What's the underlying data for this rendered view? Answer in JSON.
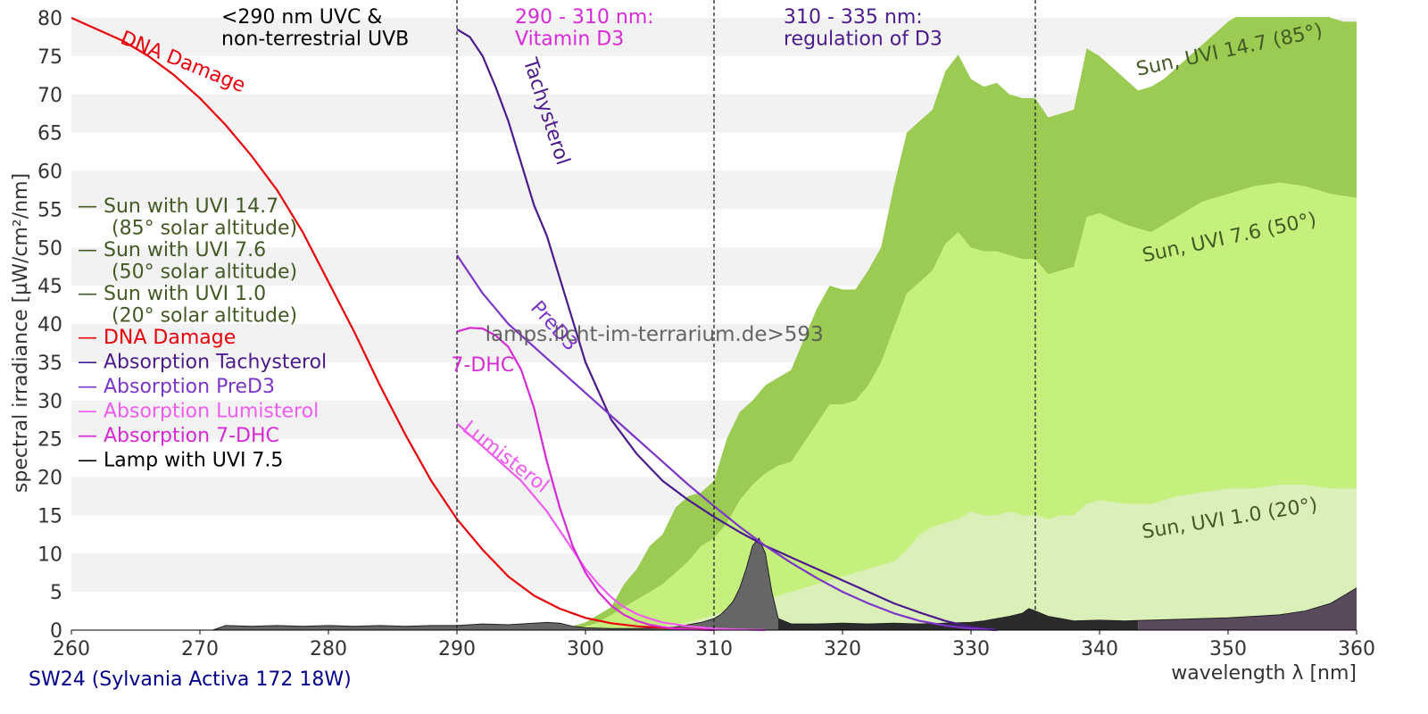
{
  "chart_data": {
    "type": "area",
    "xlabel": "wavelength λ [nm]",
    "ylabel": "spectral irradiance [µW/cm²/nm]",
    "xlim": [
      260,
      360
    ],
    "ylim": [
      0,
      80
    ],
    "x_ticks": [
      260,
      270,
      280,
      290,
      300,
      310,
      320,
      330,
      340,
      350,
      360
    ],
    "y_ticks": [
      0,
      5,
      10,
      15,
      20,
      25,
      30,
      35,
      40,
      45,
      50,
      55,
      60,
      65,
      70,
      75,
      80
    ],
    "grid": "horizontal bands",
    "legend_position": "left",
    "caption": "SW24 (Sylvania Activa 172 18W)",
    "watermark": "lamps.licht-im-terrarium.de>593",
    "colors": {
      "sun_uvi_14_7": "#9bcb52",
      "sun_uvi_7_6": "#c6f07e",
      "sun_uvi_1_0": "#daf0b8",
      "dna": "#e8000b",
      "tachysterol": "#4b1a8c",
      "pred3": "#7b35c8",
      "lumisterol": "#f05cf0",
      "dhc": "#d62ad6",
      "lamp": "#000000",
      "lamp_fill_uvb": "#666666",
      "lamp_fill_uva2": "#2b2b2b",
      "lamp_fill_uva1": "#5a4a5e",
      "sun_label": "#435a25",
      "caption": "#00008b"
    },
    "regions": [
      {
        "x": 290,
        "label_lines": [
          "<290 nm UVC &",
          "non-terrestrial UVB"
        ],
        "color": "#000000"
      },
      {
        "x": 310,
        "label_lines": [
          "290 - 310 nm:",
          "Vitamin D3"
        ],
        "color": "#d62ad6"
      },
      {
        "x": 335,
        "label_lines": [
          "310 - 335 nm:",
          "regulation of D3"
        ],
        "color": "#4b1a8c"
      }
    ],
    "legend": [
      {
        "lines": [
          "— Sun with UVI 14.7",
          "(85° solar altitude)"
        ],
        "color": "#435a25"
      },
      {
        "lines": [
          "— Sun with UVI 7.6",
          "(50° solar altitude)"
        ],
        "color": "#435a25"
      },
      {
        "lines": [
          "— Sun with UVI 1.0",
          "(20° solar altitude)"
        ],
        "color": "#435a25"
      },
      {
        "lines": [
          "— DNA Damage"
        ],
        "color": "#e8000b"
      },
      {
        "lines": [
          "— Absorption Tachysterol"
        ],
        "color": "#4b1a8c"
      },
      {
        "lines": [
          "— Absorption PreD3"
        ],
        "color": "#7b35c8"
      },
      {
        "lines": [
          "— Absorption Lumisterol"
        ],
        "color": "#f05cf0"
      },
      {
        "lines": [
          "— Absorption 7-DHC"
        ],
        "color": "#d62ad6"
      },
      {
        "lines": [
          "— Lamp with UVI 7.5"
        ],
        "color": "#000000"
      }
    ],
    "curve_labels": [
      {
        "text": "DNA Damage",
        "x": 268.5,
        "y": 73.5,
        "angle": 22,
        "color": "#e8000b"
      },
      {
        "text": "Tachysterol",
        "x": 296.5,
        "y": 67.5,
        "angle": 72,
        "color": "#4b1a8c"
      },
      {
        "text": "PreD3",
        "x": 297.2,
        "y": 39.2,
        "angle": 48,
        "color": "#7b35c8"
      },
      {
        "text": "7-DHC",
        "x": 292.0,
        "y": 33.8,
        "angle": 0,
        "color": "#d62ad6"
      },
      {
        "text": "Lumisterol",
        "x": 293.5,
        "y": 22.0,
        "angle": 38,
        "color": "#f05cf0"
      },
      {
        "text": "Sun, UVI 14.7 (85°)",
        "x": 350.2,
        "y": 75.0,
        "angle": -12,
        "color": "#435a25"
      },
      {
        "text": "Sun, UVI 7.6 (50°)",
        "x": 350.2,
        "y": 50.5,
        "angle": -12,
        "color": "#435a25"
      },
      {
        "text": "Sun, UVI 1.0 (20°)",
        "x": 350.2,
        "y": 13.8,
        "angle": -9,
        "color": "#435a25"
      }
    ],
    "series": [
      {
        "name": "Sun with UVI 14.7",
        "kind": "area",
        "x": [
          298,
          300,
          302,
          303,
          304,
          305,
          306,
          307,
          308,
          309,
          310,
          311,
          312,
          313,
          314,
          315,
          316,
          317,
          318,
          319,
          320,
          321,
          322,
          323,
          324,
          325,
          326,
          327,
          328,
          329,
          330,
          331,
          332,
          333,
          334,
          335,
          336,
          337,
          338,
          339,
          340,
          341,
          342,
          343,
          344,
          345,
          346,
          347,
          348,
          349,
          350,
          351,
          352,
          353,
          354,
          355,
          356,
          357,
          358,
          359,
          360
        ],
        "y": [
          0,
          1.0,
          3.0,
          6.0,
          8.0,
          11.0,
          12.5,
          16.0,
          17.5,
          18.0,
          19.5,
          25.0,
          28.5,
          30.0,
          32.0,
          33.0,
          34.0,
          38.0,
          42.0,
          45.0,
          44.5,
          44.5,
          47.0,
          50.0,
          58.0,
          65.0,
          66.5,
          68.0,
          73.0,
          75.2,
          72.0,
          71.0,
          71.5,
          70.0,
          69.5,
          69.5,
          67.0,
          67.5,
          68.0,
          76.0,
          75.0,
          73.5,
          72.0,
          70.5,
          71.0,
          72.0,
          73.5,
          75.0,
          76.5,
          78.0,
          79.5,
          80.5,
          81.5,
          82.5,
          83.0,
          83.5,
          82.0,
          81.0,
          80.0,
          79.5,
          79.5
        ]
      },
      {
        "name": "Sun with UVI 7.6",
        "kind": "area",
        "x": [
          299,
          301,
          302,
          303,
          304,
          305,
          306,
          307,
          308,
          309,
          310,
          311,
          312,
          313,
          314,
          315,
          316,
          317,
          318,
          319,
          320,
          321,
          322,
          323,
          324,
          325,
          326,
          327,
          328,
          329,
          330,
          331,
          332,
          333,
          334,
          335,
          336,
          337,
          338,
          339,
          340,
          342,
          344,
          346,
          348,
          350,
          352,
          354,
          356,
          358,
          360
        ],
        "y": [
          0,
          1.0,
          2.0,
          3.0,
          4.0,
          5.0,
          6.0,
          7.5,
          9.0,
          11.0,
          12.0,
          14.0,
          17.0,
          19.0,
          20.5,
          21.5,
          22.0,
          24.5,
          27.0,
          29.5,
          29.5,
          30.0,
          32.0,
          35.0,
          39.5,
          44.0,
          45.5,
          47.0,
          50.5,
          52.0,
          50.0,
          49.5,
          49.5,
          49.0,
          48.5,
          48.5,
          46.5,
          47.0,
          47.5,
          54.0,
          54.5,
          53.0,
          52.0,
          54.0,
          56.0,
          57.0,
          58.0,
          58.5,
          58.0,
          57.0,
          56.5
        ]
      },
      {
        "name": "Sun with UVI 1.0",
        "kind": "area",
        "x": [
          304,
          306,
          308,
          310,
          312,
          314,
          316,
          318,
          320,
          322,
          324,
          325,
          326,
          327,
          328,
          329,
          330,
          331,
          332,
          333,
          334,
          335,
          336,
          337,
          338,
          339,
          340,
          342,
          344,
          346,
          348,
          350,
          352,
          354,
          356,
          358,
          360
        ],
        "y": [
          0,
          0.5,
          1.0,
          2.0,
          3.0,
          4.0,
          5.0,
          6.0,
          7.0,
          8.0,
          9.0,
          10.5,
          12.5,
          13.5,
          14.0,
          14.5,
          15.5,
          15.0,
          15.0,
          15.5,
          15.0,
          15.0,
          14.5,
          15.0,
          15.0,
          16.5,
          17.0,
          16.5,
          16.5,
          17.5,
          18.0,
          18.5,
          18.5,
          19.0,
          19.0,
          18.5,
          18.5
        ]
      },
      {
        "name": "Lamp with UVI 7.5",
        "kind": "area",
        "x": [
          271,
          272,
          274,
          276,
          278,
          280,
          282,
          284,
          286,
          288,
          290,
          292,
          294,
          296,
          297,
          298,
          299,
          300,
          302,
          304,
          306,
          307,
          308,
          309,
          310,
          310.5,
          311,
          311.5,
          312,
          312.5,
          313,
          313.5,
          314,
          314.5,
          315,
          316,
          318,
          320,
          322,
          324,
          326,
          328,
          330,
          331,
          332,
          333,
          334,
          334.5,
          335,
          336,
          337,
          338,
          340,
          342,
          344,
          346,
          348,
          350,
          352,
          354,
          356,
          358,
          359,
          360
        ],
        "y": [
          0,
          0.6,
          0.5,
          0.6,
          0.5,
          0.6,
          0.5,
          0.6,
          0.5,
          0.6,
          0.6,
          0.8,
          0.7,
          0.9,
          1.0,
          0.9,
          0.5,
          0.3,
          0.2,
          0.2,
          0.3,
          0.4,
          0.7,
          1.0,
          1.5,
          2.0,
          2.8,
          3.8,
          5.5,
          8.0,
          11.0,
          12.0,
          10.0,
          5.0,
          1.5,
          0.8,
          0.8,
          0.9,
          0.8,
          0.9,
          0.8,
          0.9,
          1.0,
          1.2,
          1.5,
          1.8,
          2.2,
          2.8,
          2.5,
          1.8,
          1.5,
          1.2,
          1.3,
          1.2,
          1.3,
          1.4,
          1.5,
          1.6,
          1.8,
          2.0,
          2.5,
          3.5,
          4.5,
          5.5
        ]
      },
      {
        "name": "DNA Damage",
        "kind": "line",
        "x": [
          260,
          262,
          264,
          266,
          268,
          270,
          272,
          274,
          276,
          278,
          280,
          282,
          284,
          286,
          288,
          290,
          292,
          294,
          296,
          298,
          300,
          302,
          304,
          306,
          308,
          310
        ],
        "y": [
          80,
          78.5,
          77,
          75,
          72.5,
          69.5,
          66,
          62,
          57.5,
          52,
          45.5,
          39,
          32,
          25.5,
          19.5,
          14.5,
          10.5,
          7,
          4.5,
          2.8,
          1.6,
          0.9,
          0.5,
          0.3,
          0.15,
          0.05
        ]
      },
      {
        "name": "Absorption Tachysterol",
        "kind": "line",
        "x": [
          290,
          291,
          292,
          293,
          294,
          295,
          296,
          297,
          298,
          299,
          300,
          302,
          304,
          306,
          308,
          310,
          312,
          314,
          316,
          318,
          320,
          322,
          324,
          326,
          328,
          330,
          332
        ],
        "y": [
          78.5,
          77.5,
          75,
          71,
          66.5,
          61,
          55.5,
          51.5,
          46,
          40.5,
          35,
          27.5,
          23,
          19.5,
          17,
          14.8,
          12.8,
          11,
          9.5,
          8,
          6.5,
          5,
          3.5,
          2.3,
          1.2,
          0.4,
          0
        ]
      },
      {
        "name": "Absorption PreD3",
        "kind": "line",
        "x": [
          290,
          291,
          292,
          293,
          294,
          296,
          298,
          300,
          302,
          304,
          306,
          308,
          310,
          312,
          314,
          316,
          318,
          320,
          322,
          324,
          326,
          328,
          330,
          332
        ],
        "y": [
          49,
          46.5,
          44,
          42,
          40,
          37,
          34,
          31,
          28,
          25,
          22,
          19,
          16.2,
          13.5,
          11,
          8.8,
          6.8,
          5,
          3.5,
          2.2,
          1.2,
          0.6,
          0.2,
          0
        ]
      },
      {
        "name": "Absorption Lumisterol",
        "kind": "line",
        "x": [
          290,
          291,
          292,
          293,
          294,
          295,
          296,
          297,
          298,
          299,
          300,
          301,
          302,
          303,
          304,
          305,
          306,
          308,
          310,
          312,
          314
        ],
        "y": [
          27,
          25.5,
          24,
          22.5,
          21,
          19.5,
          17.5,
          15.5,
          13,
          10.5,
          8,
          6,
          4.3,
          3,
          2.1,
          1.5,
          1,
          0.5,
          0.2,
          0.08,
          0
        ]
      },
      {
        "name": "Absorption 7-DHC",
        "kind": "line",
        "x": [
          290,
          291,
          292,
          293,
          294,
          295,
          296,
          297,
          298,
          299,
          300,
          301,
          302,
          303,
          304,
          305,
          306,
          307,
          308,
          310
        ],
        "y": [
          39,
          39.5,
          39.4,
          38.5,
          37,
          34,
          29,
          22,
          16,
          11,
          7.5,
          5,
          3.2,
          2,
          1.2,
          0.7,
          0.4,
          0.2,
          0.1,
          0
        ]
      }
    ]
  }
}
